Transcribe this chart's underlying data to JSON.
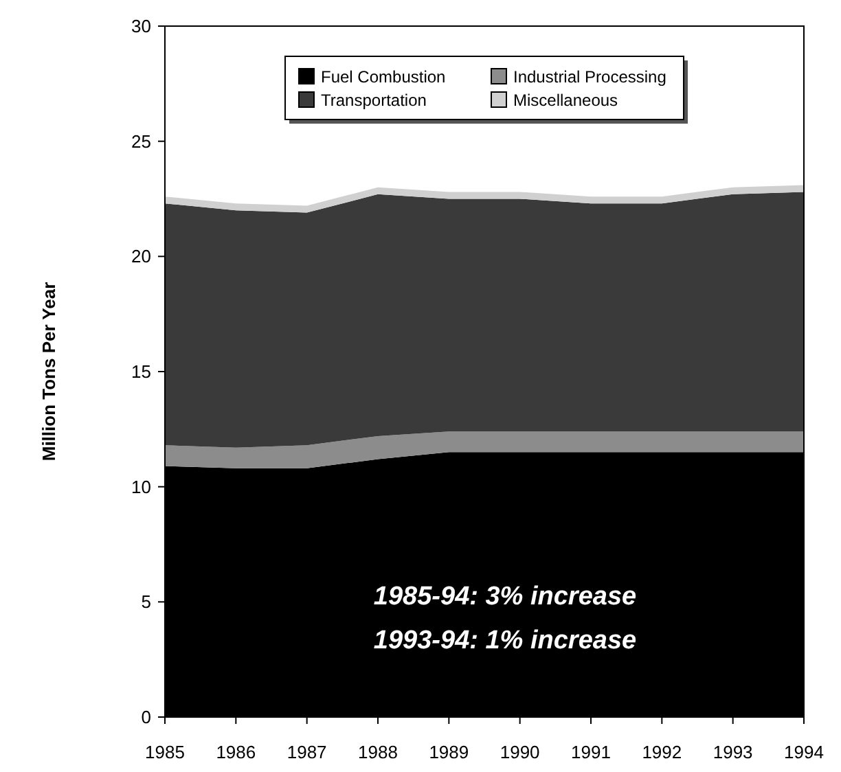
{
  "chart_data": {
    "type": "area",
    "stacked": true,
    "ylabel": "Million Tons Per Year",
    "x": [
      1985,
      1986,
      1987,
      1988,
      1989,
      1990,
      1991,
      1992,
      1993,
      1994
    ],
    "xlim": [
      1985,
      1994
    ],
    "xticks": [
      1985,
      1986,
      1987,
      1988,
      1989,
      1990,
      1991,
      1992,
      1993,
      1994
    ],
    "ylim": [
      0,
      30
    ],
    "yticks": [
      0,
      5,
      10,
      15,
      20,
      25,
      30
    ],
    "grid": false,
    "legend": "top",
    "series": [
      {
        "name": "Fuel Combustion",
        "color": "#000000",
        "values": [
          10.9,
          10.8,
          10.8,
          11.2,
          11.5,
          11.5,
          11.5,
          11.5,
          11.5,
          11.5
        ]
      },
      {
        "name": "Industrial Processing",
        "color": "#8c8c8c",
        "values": [
          0.9,
          0.9,
          1.0,
          1.0,
          0.9,
          0.9,
          0.9,
          0.9,
          0.9,
          0.9
        ]
      },
      {
        "name": "Transportation",
        "color": "#3a3a3a",
        "values": [
          10.5,
          10.3,
          10.1,
          10.5,
          10.1,
          10.1,
          9.9,
          9.9,
          10.3,
          10.4
        ]
      },
      {
        "name": "Miscellaneous",
        "color": "#d0d0d0",
        "values": [
          0.3,
          0.3,
          0.3,
          0.3,
          0.3,
          0.3,
          0.3,
          0.3,
          0.3,
          0.3
        ]
      }
    ],
    "annotations": [
      "1985-94:  3% increase",
      "1993-94:  1% increase"
    ]
  }
}
